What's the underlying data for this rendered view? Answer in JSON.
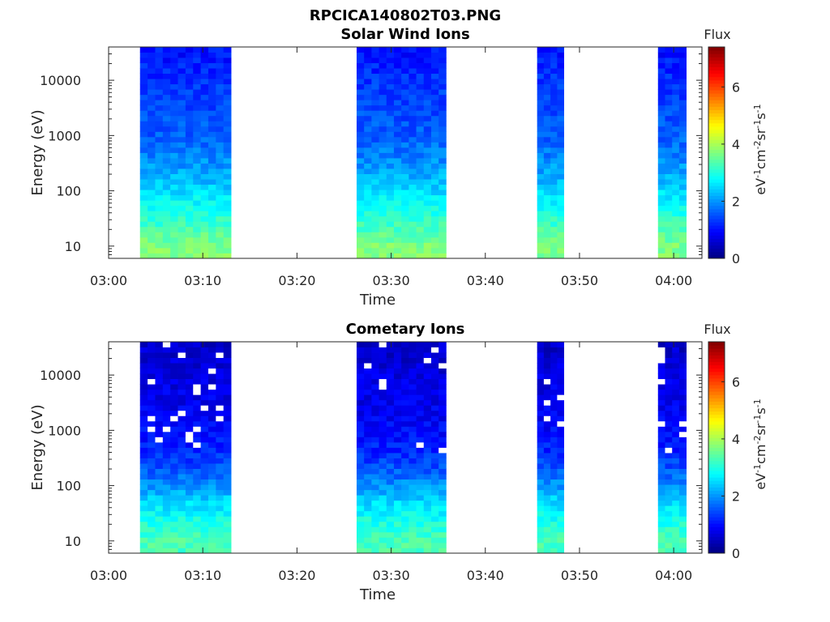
{
  "figure": {
    "title": "RPCICA140802T03.PNG"
  },
  "colormap": {
    "name": "jet",
    "stops": [
      "#00007f",
      "#0000ff",
      "#007fff",
      "#00ffff",
      "#7fff7f",
      "#ffff00",
      "#ff7f00",
      "#ff0000",
      "#7f0000"
    ]
  },
  "chart_data": [
    {
      "type": "heatmap",
      "title": "Solar Wind Ions",
      "xlabel": "Time",
      "ylabel": "Energy (eV)",
      "x_ticks": [
        "03:00",
        "03:10",
        "03:20",
        "03:30",
        "03:40",
        "03:50",
        "04:00"
      ],
      "x_range_minutes": [
        0,
        63
      ],
      "y_scale": "log",
      "y_ticks": [
        "10",
        "100",
        "1000",
        "10000"
      ],
      "y_range": [
        6,
        40000
      ],
      "colorbar": {
        "title": "Flux",
        "label": "eV-1cm-2sr-1s-1",
        "label_parts": [
          {
            "t": "eV",
            "s": false
          },
          {
            "t": "-1",
            "s": true
          },
          {
            "t": "cm",
            "s": false
          },
          {
            "t": "-2",
            "s": true
          },
          {
            "t": "sr",
            "s": false
          },
          {
            "t": "-1",
            "s": true
          },
          {
            "t": "s",
            "s": false
          },
          {
            "t": "-1",
            "s": true
          }
        ],
        "ticks": [
          "0",
          "2",
          "4",
          "6"
        ],
        "range": [
          0,
          7.4
        ]
      },
      "data_blocks": [
        {
          "start": "03:03:20",
          "end": "03:13:00"
        },
        {
          "start": "03:26:20",
          "end": "03:35:50"
        },
        {
          "start": "03:45:30",
          "end": "03:48:20"
        },
        {
          "start": "03:58:20",
          "end": "04:01:20"
        }
      ],
      "energy_profile": [
        {
          "energy": 10,
          "flux": 3.7
        },
        {
          "energy": 25,
          "flux": 3.2
        },
        {
          "energy": 60,
          "flux": 2.8
        },
        {
          "energy": 150,
          "flux": 2.3
        },
        {
          "energy": 400,
          "flux": 1.9
        },
        {
          "energy": 1000,
          "flux": 1.6
        },
        {
          "energy": 3000,
          "flux": 1.45
        },
        {
          "energy": 10000,
          "flux": 1.3
        },
        {
          "energy": 30000,
          "flux": 1.05
        }
      ]
    },
    {
      "type": "heatmap",
      "title": "Cometary Ions",
      "xlabel": "Time",
      "ylabel": "Energy (eV)",
      "x_ticks": [
        "03:00",
        "03:10",
        "03:20",
        "03:30",
        "03:40",
        "03:50",
        "04:00"
      ],
      "x_range_minutes": [
        0,
        63
      ],
      "y_scale": "log",
      "y_ticks": [
        "10",
        "100",
        "1000",
        "10000"
      ],
      "y_range": [
        6,
        40000
      ],
      "colorbar": {
        "title": "Flux",
        "label": "eV-1cm-2sr-1s-1",
        "label_parts": [
          {
            "t": "eV",
            "s": false
          },
          {
            "t": "-1",
            "s": true
          },
          {
            "t": "cm",
            "s": false
          },
          {
            "t": "-2",
            "s": true
          },
          {
            "t": "sr",
            "s": false
          },
          {
            "t": "-1",
            "s": true
          },
          {
            "t": "s",
            "s": false
          },
          {
            "t": "-1",
            "s": true
          }
        ],
        "ticks": [
          "0",
          "2",
          "4",
          "6"
        ],
        "range": [
          0,
          7.4
        ]
      },
      "data_blocks": [
        {
          "start": "03:03:20",
          "end": "03:13:00"
        },
        {
          "start": "03:26:20",
          "end": "03:35:50"
        },
        {
          "start": "03:45:30",
          "end": "03:48:20"
        },
        {
          "start": "03:58:20",
          "end": "04:01:20"
        }
      ],
      "energy_profile": [
        {
          "energy": 10,
          "flux": 3.3
        },
        {
          "energy": 25,
          "flux": 2.9
        },
        {
          "energy": 60,
          "flux": 2.4
        },
        {
          "energy": 150,
          "flux": 1.7
        },
        {
          "energy": 400,
          "flux": 1.2
        },
        {
          "energy": 1000,
          "flux": 0.95
        },
        {
          "energy": 3000,
          "flux": 0.8
        },
        {
          "energy": 10000,
          "flux": 0.7
        },
        {
          "energy": 30000,
          "flux": 0.55
        }
      ]
    }
  ]
}
